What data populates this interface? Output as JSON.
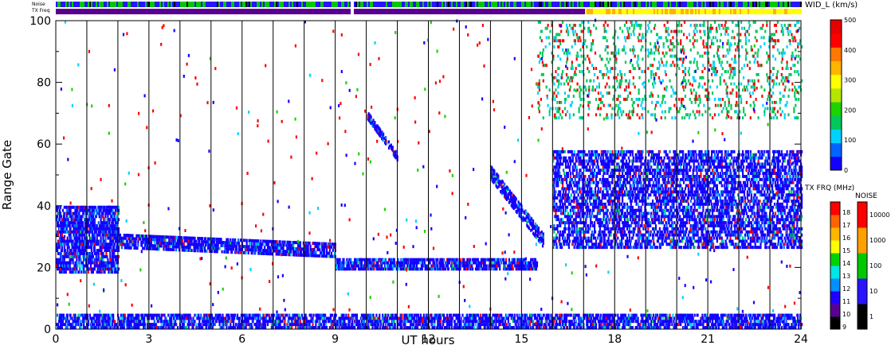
{
  "chart_data": {
    "type": "heatmap",
    "xlabel": "UT hours",
    "ylabel": "Range Gate",
    "xlim": [
      0,
      24
    ],
    "ylim": [
      0,
      100
    ],
    "x_ticks": [
      "0",
      "3",
      "6",
      "9",
      "12",
      "15",
      "18",
      "21",
      "24"
    ],
    "y_ticks": [
      "0",
      "20",
      "40",
      "60",
      "80",
      "100"
    ],
    "scan_boundaries_hours": [
      1,
      2,
      3,
      4,
      5,
      6,
      7,
      8,
      9,
      10,
      11,
      12,
      13,
      14,
      15,
      16,
      17,
      18,
      19,
      20,
      21,
      22,
      23
    ],
    "strip_labels": {
      "noise": "Noise",
      "tx_freq": "TX Freq"
    },
    "data_gap_hour": 9.5,
    "tx_freq_change_hour": 17,
    "colorbars": [
      {
        "name": "width",
        "label": "WID_L (km/s)",
        "ticks": [
          "0",
          "100",
          "200",
          "300",
          "400",
          "500"
        ],
        "min": 0,
        "max": 500,
        "colors": [
          "#1400ff",
          "#0064ff",
          "#00d2ff",
          "#00c85a",
          "#1ed200",
          "#b4e600",
          "#ffff00",
          "#ffb400",
          "#ff7800",
          "#ff0000",
          "#e60000"
        ]
      },
      {
        "name": "tx_freq",
        "label": "TX FRQ (MHz)",
        "ticks": [
          "9",
          "10",
          "11",
          "12",
          "13",
          "14",
          "15",
          "16",
          "17",
          "18"
        ],
        "colors": [
          "#000000",
          "#5a0090",
          "#1e00ff",
          "#0090ff",
          "#00e6e6",
          "#00d200",
          "#ffff00",
          "#ffb400",
          "#ff6400",
          "#ff0000"
        ]
      },
      {
        "name": "noise",
        "label": "NOISE",
        "ticks": [
          "1",
          "10",
          "100",
          "1000",
          "10000"
        ],
        "colors": [
          "#000000",
          "#2814ff",
          "#00c800",
          "#ffa000",
          "#ff0000"
        ]
      }
    ],
    "features": [
      {
        "name": "ground scatter band",
        "start_hour": 0,
        "end_hour": 24,
        "gate_low": 0,
        "gate_high": 5
      },
      {
        "name": "scatter band 20-35",
        "start_hour": 0,
        "end_hour": 2,
        "gate_low": 18,
        "gate_high": 40
      },
      {
        "name": "declining band",
        "start_hour": 2,
        "end_hour": 9,
        "gate_low": 22,
        "gate_high": 30
      },
      {
        "name": "band near gate 20",
        "start_hour": 9,
        "end_hour": 15.5,
        "gate_low": 18,
        "gate_high": 24
      },
      {
        "name": "descending arc",
        "start_hour": 10,
        "end_hour": 11,
        "gate_low": 54,
        "gate_high": 70
      },
      {
        "name": "morning rise",
        "start_hour": 14,
        "end_hour": 15.7,
        "gate_low": 25,
        "gate_high": 50
      },
      {
        "name": "high gate scatter",
        "start_hour": 15.5,
        "end_hour": 24,
        "gate_low": 68,
        "gate_high": 100
      },
      {
        "name": "broad band",
        "start_hour": 16,
        "end_hour": 24,
        "gate_low": 26,
        "gate_high": 58
      }
    ]
  }
}
